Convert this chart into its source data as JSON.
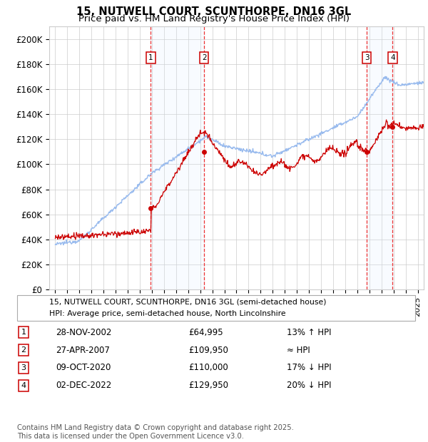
{
  "title": "15, NUTWELL COURT, SCUNTHORPE, DN16 3GL",
  "subtitle": "Price paid vs. HM Land Registry's House Price Index (HPI)",
  "ylim": [
    0,
    210000
  ],
  "yticks": [
    0,
    20000,
    40000,
    60000,
    80000,
    100000,
    120000,
    140000,
    160000,
    180000,
    200000
  ],
  "ytick_labels": [
    "£0",
    "£20K",
    "£40K",
    "£60K",
    "£80K",
    "£100K",
    "£120K",
    "£140K",
    "£160K",
    "£180K",
    "£200K"
  ],
  "xlim_start": 1994.5,
  "xlim_end": 2025.5,
  "background_color": "#ffffff",
  "grid_color": "#cccccc",
  "hpi_line_color": "#99bbee",
  "price_line_color": "#cc0000",
  "dashed_line_color": "#ee3333",
  "shade_color": "#ddeeff",
  "transactions": [
    {
      "num": 1,
      "date_str": "28-NOV-2002",
      "year": 2002.91,
      "price": 64995,
      "label": "13% ↑ HPI"
    },
    {
      "num": 2,
      "date_str": "27-APR-2007",
      "year": 2007.32,
      "price": 109950,
      "label": "≈ HPI"
    },
    {
      "num": 3,
      "date_str": "09-OCT-2020",
      "year": 2020.78,
      "price": 110000,
      "label": "17% ↓ HPI"
    },
    {
      "num": 4,
      "date_str": "02-DEC-2022",
      "year": 2022.92,
      "price": 129950,
      "label": "20% ↓ HPI"
    }
  ],
  "legend_entries": [
    "15, NUTWELL COURT, SCUNTHORPE, DN16 3GL (semi-detached house)",
    "HPI: Average price, semi-detached house, North Lincolnshire"
  ],
  "footer": "Contains HM Land Registry data © Crown copyright and database right 2025.\nThis data is licensed under the Open Government Licence v3.0.",
  "table_rows": [
    [
      "1",
      "28-NOV-2002",
      "£64,995",
      "13% ↑ HPI"
    ],
    [
      "2",
      "27-APR-2007",
      "£109,950",
      "≈ HPI"
    ],
    [
      "3",
      "09-OCT-2020",
      "£110,000",
      "17% ↓ HPI"
    ],
    [
      "4",
      "02-DEC-2022",
      "£129,950",
      "20% ↓ HPI"
    ]
  ]
}
